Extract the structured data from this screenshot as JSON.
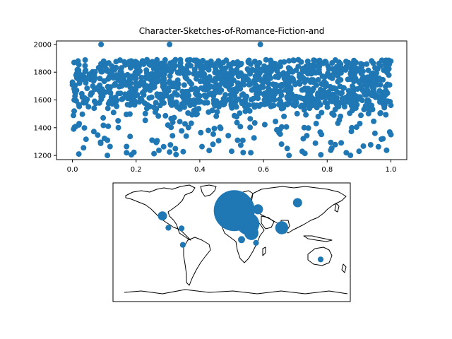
{
  "chart_data": [
    {
      "type": "scatter",
      "title": "Character-Sketches-of-Romance-Fiction-and",
      "xlabel": "",
      "ylabel": "",
      "xlim": [
        -0.05,
        1.05
      ],
      "ylim": [
        1170,
        2025
      ],
      "xticks": [
        0.0,
        0.2,
        0.4,
        0.6,
        0.8,
        1.0
      ],
      "xtick_labels": [
        "0.0",
        "0.2",
        "0.4",
        "0.6",
        "0.8",
        "1.0"
      ],
      "yticks": [
        1200,
        1400,
        1600,
        1800,
        2000
      ],
      "ytick_labels": [
        "1200",
        "1400",
        "1600",
        "1800",
        "2000"
      ],
      "grid": false,
      "marker_color": "#1f77b4",
      "highlighted_points": [
        {
          "x": 0.09,
          "y": 2000
        },
        {
          "x": 0.305,
          "y": 2000
        },
        {
          "x": 0.59,
          "y": 2000
        },
        {
          "x": 0.02,
          "y": 1210
        },
        {
          "x": 0.11,
          "y": 1200
        },
        {
          "x": 0.17,
          "y": 1220
        },
        {
          "x": 0.185,
          "y": 1205
        },
        {
          "x": 0.305,
          "y": 1225
        },
        {
          "x": 0.5,
          "y": 1230
        },
        {
          "x": 0.56,
          "y": 1220
        },
        {
          "x": 0.68,
          "y": 1200
        },
        {
          "x": 0.73,
          "y": 1215
        },
        {
          "x": 0.78,
          "y": 1205
        },
        {
          "x": 0.86,
          "y": 1220
        },
        {
          "x": 0.9,
          "y": 1230
        },
        {
          "x": 1.0,
          "y": 1350
        },
        {
          "x": 0.975,
          "y": 1320
        },
        {
          "x": 0.02,
          "y": 1420
        },
        {
          "x": 0.11,
          "y": 1310
        },
        {
          "x": 0.25,
          "y": 1310
        },
        {
          "x": 0.95,
          "y": 1360
        }
      ],
      "dense_band": {
        "x_range": [
          0.0,
          1.0
        ],
        "y_range": [
          1560,
          1890
        ],
        "count": 1100
      },
      "sparse_region": {
        "x_range": [
          0.0,
          1.0
        ],
        "y_range": [
          1200,
          1560
        ],
        "count": 200
      }
    },
    {
      "type": "bubble-map",
      "projection": "equirectangular",
      "marker_color": "#1f77b4",
      "bubbles": [
        {
          "lon": 4,
          "lat": 48,
          "value": 100
        },
        {
          "lon": 25,
          "lat": 28,
          "value": 30
        },
        {
          "lon": 30,
          "lat": 14,
          "value": 12
        },
        {
          "lon": 76,
          "lat": 22,
          "value": 10
        },
        {
          "lon": 100,
          "lat": 60,
          "value": 5
        },
        {
          "lon": -105,
          "lat": 40,
          "value": 5
        },
        {
          "lon": 40,
          "lat": 50,
          "value": 6
        },
        {
          "lon": 15,
          "lat": 4,
          "value": 3
        },
        {
          "lon": 37,
          "lat": -1,
          "value": 2
        },
        {
          "lon": -96,
          "lat": 22,
          "value": 2
        },
        {
          "lon": -76,
          "lat": 21,
          "value": 2
        },
        {
          "lon": -74,
          "lat": -4,
          "value": 2
        },
        {
          "lon": 135,
          "lat": -26,
          "value": 2
        }
      ]
    }
  ]
}
